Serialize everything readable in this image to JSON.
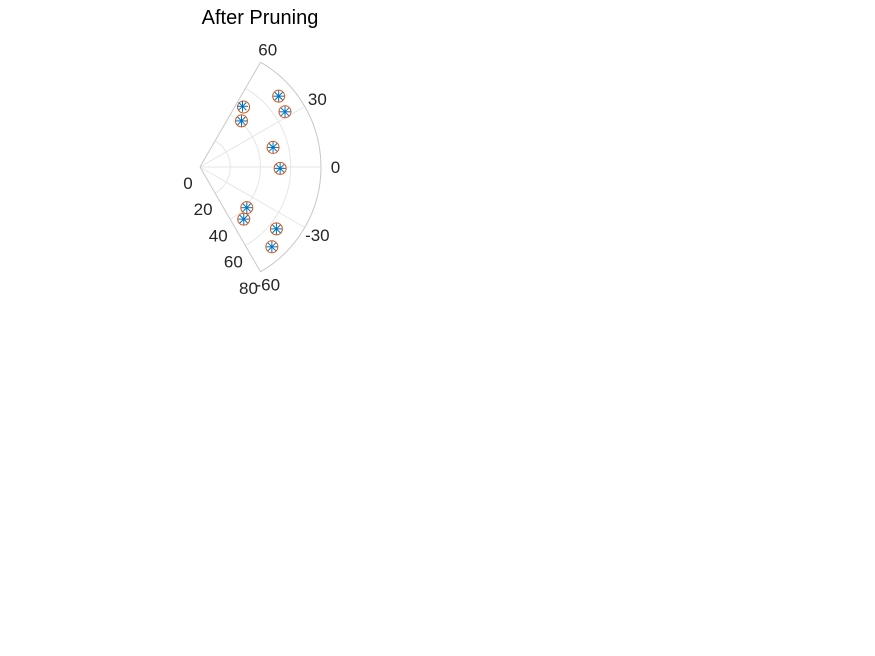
{
  "chart_data": {
    "type": "scatter",
    "coordinate_system": "polar",
    "title": "After Pruning",
    "theta_unit": "degrees",
    "theta_range": [
      -60,
      60
    ],
    "r_range": [
      0,
      80
    ],
    "theta_ticks": [
      -60,
      -30,
      0,
      30,
      60
    ],
    "theta_tick_labels": [
      "-60",
      "-30",
      "0",
      "30",
      "60"
    ],
    "r_ticks": [
      0,
      20,
      40,
      60,
      80
    ],
    "r_tick_labels": [
      "0",
      "20",
      "40",
      "60",
      "80"
    ],
    "grid": true,
    "series": [
      {
        "marker": "circle",
        "color": "#D95319",
        "points": [
          {
            "theta": 54,
            "r": 49
          },
          {
            "theta": 48,
            "r": 41
          },
          {
            "theta": 33,
            "r": 67
          },
          {
            "theta": 42,
            "r": 70
          },
          {
            "theta": 15,
            "r": 50
          },
          {
            "theta": -1,
            "r": 53
          },
          {
            "theta": -41,
            "r": 41
          },
          {
            "theta": -50,
            "r": 45
          },
          {
            "theta": -39,
            "r": 65
          },
          {
            "theta": -48,
            "r": 71
          }
        ]
      },
      {
        "marker": "asterisk",
        "color": "#0072BD",
        "points": [
          {
            "theta": 55,
            "r": 49
          },
          {
            "theta": 48,
            "r": 41
          },
          {
            "theta": 33,
            "r": 67
          },
          {
            "theta": 42,
            "r": 70
          },
          {
            "theta": 15,
            "r": 50
          },
          {
            "theta": -1,
            "r": 53
          },
          {
            "theta": -41,
            "r": 41
          },
          {
            "theta": -50,
            "r": 45
          },
          {
            "theta": -39,
            "r": 65
          },
          {
            "theta": -48,
            "r": 71
          }
        ]
      }
    ]
  }
}
